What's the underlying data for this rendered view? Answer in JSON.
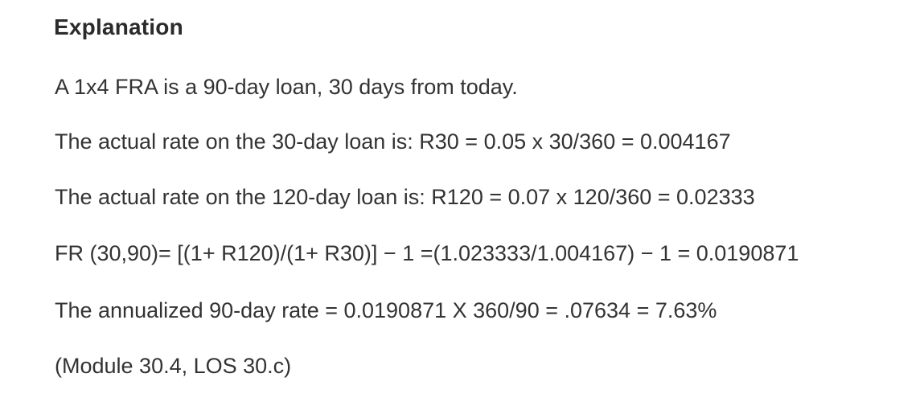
{
  "explanation": {
    "heading": "Explanation",
    "lines": [
      "A 1x4 FRA is a 90-day loan, 30 days from today.",
      "The actual rate on the 30-day loan is: R30 = 0.05 x 30/360 = 0.004167",
      "The actual rate on the 120-day loan is: R120 = 0.07 x 120/360 = 0.02333",
      "FR (30,90)= [(1+ R120)/(1+ R30)] − 1 =(1.023333/1.004167) − 1 = 0.0190871",
      "The annualized 90-day rate = 0.0190871 X 360/90 = .07634 = 7.63%",
      "(Module 30.4, LOS 30.c)"
    ]
  }
}
